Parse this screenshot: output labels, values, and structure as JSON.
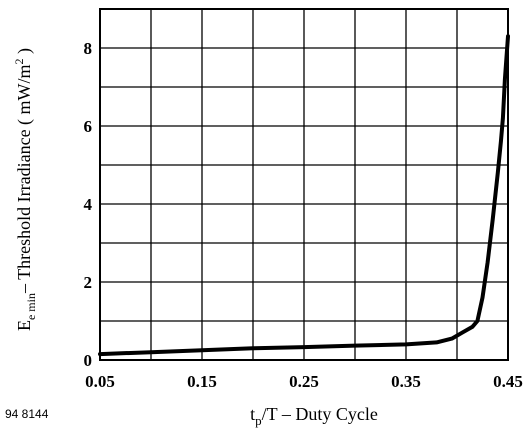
{
  "chart_data": {
    "type": "line",
    "title": "",
    "figure_id": "94 8144",
    "xlabel": {
      "main": "t",
      "sub": "p",
      "rest": "/T – Duty Cycle"
    },
    "ylabel": {
      "main": "E",
      "sub": "e min",
      "rest": "– Threshold Irradiance ( mW/m",
      "sup": "2",
      "close": " )"
    },
    "xlim": [
      0.05,
      0.45
    ],
    "ylim": [
      0,
      9
    ],
    "x_ticks": [
      0.05,
      0.15,
      0.25,
      0.35,
      0.45
    ],
    "x_tick_labels": [
      "0.05",
      "0.15",
      "0.25",
      "0.35",
      "0.45"
    ],
    "y_ticks": [
      0,
      2,
      4,
      6,
      8
    ],
    "y_tick_labels": [
      "0",
      "2",
      "4",
      "6",
      "8"
    ],
    "grid": true,
    "series": [
      {
        "x": [
          0.05,
          0.1,
          0.15,
          0.2,
          0.25,
          0.3,
          0.35,
          0.38,
          0.395,
          0.405,
          0.415,
          0.42,
          0.425,
          0.43,
          0.435,
          0.44,
          0.443,
          0.445,
          0.447,
          0.45
        ],
        "y": [
          0.15,
          0.2,
          0.25,
          0.3,
          0.33,
          0.37,
          0.4,
          0.45,
          0.55,
          0.7,
          0.85,
          1.0,
          1.6,
          2.5,
          3.6,
          4.8,
          5.6,
          6.2,
          7.2,
          8.3
        ]
      }
    ],
    "colors": {
      "line": "#000000",
      "grid": "#000000",
      "background": "#ffffff"
    }
  }
}
